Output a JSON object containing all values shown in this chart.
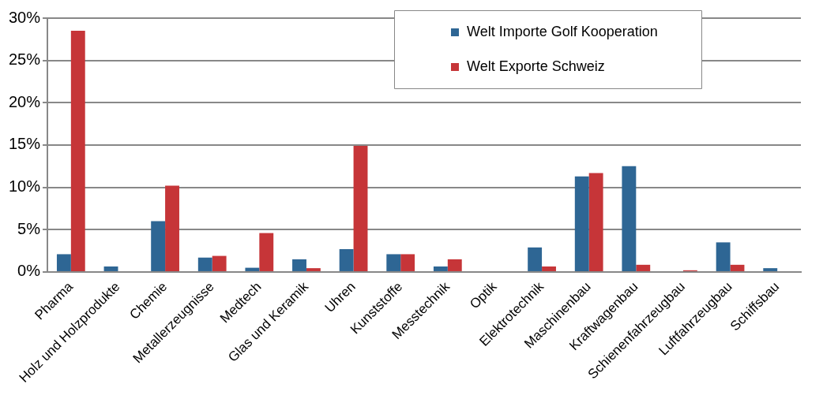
{
  "chart_data": {
    "type": "bar",
    "categories": [
      "Pharma",
      "Holz und Holzprodukte",
      "Chemie",
      "Metallerzeugnisse",
      "Medtech",
      "Glas und Keramik",
      "Uhren",
      "Kunststoffe",
      "Messtechnik",
      "Optik",
      "Elektrotechnik",
      "Maschinenbau",
      "Kraftwagenbau",
      "Schienenfahrzeugbau",
      "Luftfahrzeugbau",
      "Schiffsbau"
    ],
    "series": [
      {
        "name": "Welt Importe Golf Kooperation",
        "color": "#2e6694",
        "values": [
          2.1,
          0.65,
          6.0,
          1.7,
          0.5,
          1.5,
          2.7,
          2.1,
          0.65,
          0,
          2.9,
          11.3,
          12.5,
          0,
          3.5,
          0.45
        ]
      },
      {
        "name": "Welt Exporte Schweiz",
        "color": "#c63538",
        "values": [
          28.5,
          0,
          10.2,
          1.9,
          4.6,
          0.45,
          14.9,
          2.1,
          1.5,
          0,
          0.65,
          11.7,
          0.85,
          0.2,
          0.85,
          0
        ]
      }
    ],
    "ylim": [
      0,
      30
    ],
    "yticks": [
      {
        "value": 0,
        "label": "0%"
      },
      {
        "value": 5,
        "label": "5%"
      },
      {
        "value": 10,
        "label": "10%"
      },
      {
        "value": 15,
        "label": "15%"
      },
      {
        "value": 20,
        "label": "20%"
      },
      {
        "value": 25,
        "label": "25%"
      },
      {
        "value": 30,
        "label": "30%"
      }
    ],
    "grid": "y",
    "legend": "top right"
  }
}
